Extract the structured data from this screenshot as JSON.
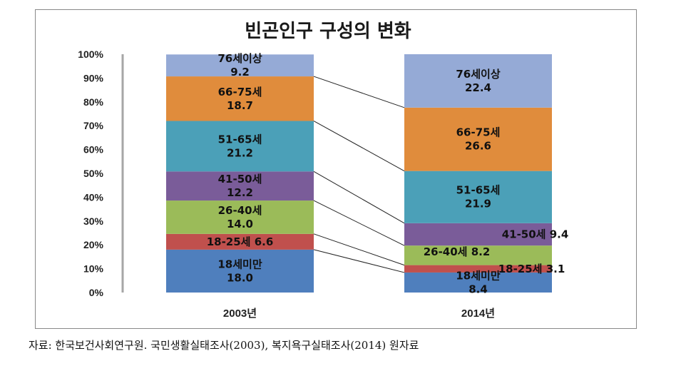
{
  "chart_data": {
    "type": "bar",
    "stacked": true,
    "percent": true,
    "title": "빈곤인구 구성의 변화",
    "categories": [
      "2003년",
      "2014년"
    ],
    "yticks": [
      "0%",
      "10%",
      "20%",
      "30%",
      "40%",
      "50%",
      "60%",
      "70%",
      "80%",
      "90%",
      "100%"
    ],
    "ylim": [
      0,
      100
    ],
    "series": [
      {
        "name": "18세미만",
        "values": [
          18.0,
          8.4
        ],
        "color": "#4f7fbd"
      },
      {
        "name": "18-25세",
        "values": [
          6.6,
          3.1
        ],
        "color": "#c0504d"
      },
      {
        "name": "26-40세",
        "values": [
          14.0,
          8.2
        ],
        "color": "#9bbb59"
      },
      {
        "name": "41-50세",
        "values": [
          12.2,
          9.4
        ],
        "color": "#7a5c99"
      },
      {
        "name": "51-65세",
        "values": [
          21.2,
          21.9
        ],
        "color": "#4ba0b8"
      },
      {
        "name": "66-75세",
        "values": [
          18.7,
          26.6
        ],
        "color": "#e08c3c"
      },
      {
        "name": "76세이상",
        "values": [
          9.2,
          22.4
        ],
        "color": "#95aad6"
      }
    ],
    "labels": [
      [
        [
          "18세미만",
          "18.0"
        ],
        [
          "18-25세 6.6"
        ],
        [
          "26-40세",
          "14.0"
        ],
        [
          "41-50세",
          "12.2"
        ],
        [
          "51-65세",
          "21.2"
        ],
        [
          "66-75세",
          "18.7"
        ],
        [
          "76세이상",
          "9.2"
        ]
      ],
      [
        [
          "18세미만",
          "8.4"
        ],
        [
          "18-25세 3.1"
        ],
        [
          "26-40세 8.2"
        ],
        [
          "41-50세 9.4"
        ],
        [
          "51-65세",
          "21.9"
        ],
        [
          "66-75세",
          "26.6"
        ],
        [
          "76세이상",
          "22.4"
        ]
      ]
    ],
    "series_lines": true,
    "grid": false,
    "legend": "none"
  },
  "source_note": "자료: 한국보건사회연구원. 국민생활실태조사(2003), 복지욕구실태조사(2014) 원자료"
}
